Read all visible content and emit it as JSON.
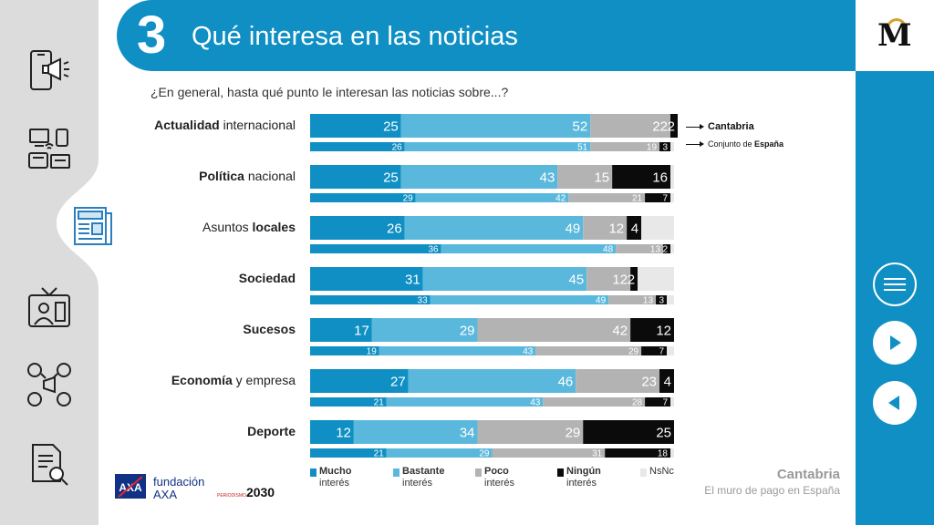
{
  "header": {
    "number": "3",
    "title": "Qué interesa en las noticias"
  },
  "question": "¿En general, hasta qué punto le interesan las noticias sobre...?",
  "series_key": [
    {
      "label": "Cantabria",
      "bold": true
    },
    {
      "label_plain": "Conjunto de ",
      "label_bold": "España"
    }
  ],
  "colors": {
    "mucho": "#0f8fc3",
    "bastante": "#5bb8dd",
    "poco": "#b3b3b3",
    "ningun": "#0b0b0b",
    "nsnc": "#e8e8e8",
    "header_blue": "#0f8fc3"
  },
  "legend": [
    {
      "line1": "Mucho",
      "line2": "interés",
      "color_key": "mucho"
    },
    {
      "line1": "Bastante",
      "line2": "interés",
      "color_key": "bastante"
    },
    {
      "line1": "Poco",
      "line2": "interés",
      "color_key": "poco"
    },
    {
      "line1": "Ningún",
      "line2": "interés",
      "color_key": "ningun"
    },
    {
      "line1": "",
      "line2": "",
      "label": "NsNc",
      "color_key": "nsnc"
    }
  ],
  "chart_data": {
    "type": "bar",
    "orientation": "horizontal-stacked",
    "segments": [
      "Mucho interés",
      "Bastante interés",
      "Poco interés",
      "Ningún interés",
      "NsNc"
    ],
    "series_names": [
      "Cantabria",
      "Conjunto de España"
    ],
    "categories": [
      {
        "bold": "Actualidad",
        "rest": " internacional",
        "bold_first": true,
        "cantabria": [
          25,
          52,
          22,
          2
        ],
        "espana": [
          26,
          51,
          19,
          3
        ]
      },
      {
        "bold": "Política",
        "rest": " nacional",
        "bold_first": true,
        "cantabria": [
          25,
          43,
          15,
          16
        ],
        "espana": [
          29,
          42,
          21,
          7
        ]
      },
      {
        "bold": "locales",
        "rest": "Asuntos ",
        "bold_first": false,
        "cantabria": [
          26,
          49,
          12,
          4
        ],
        "espana": [
          36,
          48,
          13,
          2
        ]
      },
      {
        "bold": "Sociedad",
        "rest": "",
        "bold_first": true,
        "cantabria": [
          31,
          45,
          12,
          2
        ],
        "espana": [
          33,
          49,
          13,
          3
        ]
      },
      {
        "bold": "Sucesos",
        "rest": "",
        "bold_first": true,
        "cantabria": [
          17,
          29,
          42,
          12
        ],
        "espana": [
          19,
          43,
          29,
          7
        ]
      },
      {
        "bold": "Economía",
        "rest": " y empresa",
        "bold_first": true,
        "cantabria": [
          27,
          46,
          23,
          4
        ],
        "espana": [
          21,
          43,
          28,
          7
        ]
      },
      {
        "bold": "Deporte",
        "rest": "",
        "bold_first": true,
        "cantabria": [
          12,
          34,
          29,
          25
        ],
        "espana": [
          21,
          29,
          31,
          18
        ]
      }
    ],
    "xlim": [
      0,
      100
    ]
  },
  "footer": {
    "region": "Cantabria",
    "subtitle": "El muro de pago en España",
    "axa_line1": "fundación",
    "axa_line2": "AXA",
    "partner_big": "2030",
    "partner_small": "PERIODISMO"
  },
  "logo_letter": "M",
  "sidebar_icons": [
    "smartphone-megaphone-icon",
    "devices-icon",
    "newspaper-icon",
    "tv-presenter-icon",
    "social-media-icon",
    "document-search-icon"
  ]
}
